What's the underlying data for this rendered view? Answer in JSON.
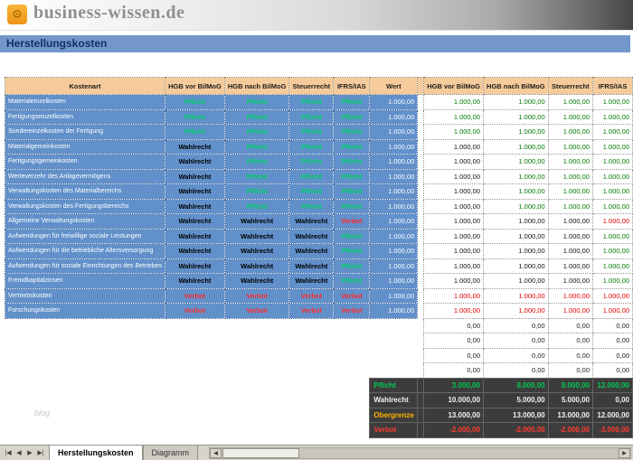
{
  "brand": {
    "logo_text": "business-wissen.de",
    "logo_icon_glyph": "⚙"
  },
  "title": "Herstellungskosten",
  "watermark": "blog",
  "colors": {
    "title_bar": "#7396cb",
    "header_bg": "#f6cb9b",
    "grid_bg": "#6190ca",
    "pflicht": "#008000",
    "wahlrecht": "#000000",
    "verbot": "#ff0000",
    "summary_bg": "#3c3c3c",
    "logo_orange": "#f2a33c"
  },
  "table": {
    "headers": {
      "kostenart": "Kostenart",
      "status_cols": [
        "HGB vor BilMoG",
        "HGB nach BilMoG",
        "Steuerrecht",
        "IFRS/IAS"
      ],
      "wert": "Wert",
      "value_cols": [
        "HGB vor BilMoG",
        "HGB nach BilMoG",
        "Steuerrecht",
        "IFRS/IAS"
      ]
    },
    "rows": [
      {
        "name": "Materialeinzelkosten",
        "status": [
          "Pflicht",
          "Pflicht",
          "Pflicht",
          "Pflicht"
        ],
        "wert": "1.000,00",
        "values": [
          "1.000,00",
          "1.000,00",
          "1.000,00",
          "1.000,00"
        ]
      },
      {
        "name": "Fertigungseinzelkosten",
        "status": [
          "Pflicht",
          "Pflicht",
          "Pflicht",
          "Pflicht"
        ],
        "wert": "1.000,00",
        "values": [
          "1.000,00",
          "1.000,00",
          "1.000,00",
          "1.000,00"
        ]
      },
      {
        "name": "Sondereinzelkosten der Fertigung",
        "status": [
          "Pflicht",
          "Pflicht",
          "Pflicht",
          "Pflicht"
        ],
        "wert": "1.000,00",
        "values": [
          "1.000,00",
          "1.000,00",
          "1.000,00",
          "1.000,00"
        ]
      },
      {
        "name": "Materialgemeinkosten",
        "status": [
          "Wahlrecht",
          "Pflicht",
          "Pflicht",
          "Pflicht"
        ],
        "wert": "1.000,00",
        "values": [
          "1.000,00",
          "1.000,00",
          "1.000,00",
          "1.000,00"
        ]
      },
      {
        "name": "Fertigungsgemeinkosten",
        "status": [
          "Wahlrecht",
          "Pflicht",
          "Pflicht",
          "Pflicht"
        ],
        "wert": "1.000,00",
        "values": [
          "1.000,00",
          "1.000,00",
          "1.000,00",
          "1.000,00"
        ]
      },
      {
        "name": "Werteverzehr des Anlagevermögens",
        "status": [
          "Wahlrecht",
          "Pflicht",
          "Pflicht",
          "Pflicht"
        ],
        "wert": "1.000,00",
        "values": [
          "1.000,00",
          "1.000,00",
          "1.000,00",
          "1.000,00"
        ]
      },
      {
        "name": "Verwaltungskosten des Materialbereichs",
        "status": [
          "Wahlrecht",
          "Pflicht",
          "Pflicht",
          "Pflicht"
        ],
        "wert": "1.000,00",
        "values": [
          "1.000,00",
          "1.000,00",
          "1.000,00",
          "1.000,00"
        ]
      },
      {
        "name": "Verwaltungskosten des Fertigungsbereichs",
        "status": [
          "Wahlrecht",
          "Pflicht",
          "Pflicht",
          "Pflicht"
        ],
        "wert": "1.000,00",
        "values": [
          "1.000,00",
          "1.000,00",
          "1.000,00",
          "1.000,00"
        ]
      },
      {
        "name": "Allgemeine Verwaltungskosten",
        "status": [
          "Wahlrecht",
          "Wahlrecht",
          "Wahlrecht",
          "Verbot"
        ],
        "wert": "1.000,00",
        "values": [
          "1.000,00",
          "1.000,00",
          "1.000,00",
          "1.000,00"
        ]
      },
      {
        "name": "Aufwendungen für freiwillige soziale Leistungen",
        "status": [
          "Wahlrecht",
          "Wahlrecht",
          "Wahlrecht",
          "Pflicht"
        ],
        "wert": "1.000,00",
        "values": [
          "1.000,00",
          "1.000,00",
          "1.000,00",
          "1.000,00"
        ]
      },
      {
        "name": "Aufwendungen für die betriebliche Altersversorgung",
        "status": [
          "Wahlrecht",
          "Wahlrecht",
          "Wahlrecht",
          "Pflicht"
        ],
        "wert": "1.000,00",
        "values": [
          "1.000,00",
          "1.000,00",
          "1.000,00",
          "1.000,00"
        ]
      },
      {
        "name": "Aufwendungen für soziale Einrichtungen des Betriebes",
        "status": [
          "Wahlrecht",
          "Wahlrecht",
          "Wahlrecht",
          "Pflicht"
        ],
        "wert": "1.000,00",
        "values": [
          "1.000,00",
          "1.000,00",
          "1.000,00",
          "1.000,00"
        ]
      },
      {
        "name": "Fremdkapitalzinsen",
        "status": [
          "Wahlrecht",
          "Wahlrecht",
          "Wahlrecht",
          "Pflicht"
        ],
        "wert": "1.000,00",
        "values": [
          "1.000,00",
          "1.000,00",
          "1.000,00",
          "1.000,00"
        ]
      },
      {
        "name": "Vertriebskosten",
        "status": [
          "Verbot",
          "Verbot",
          "Verbot",
          "Verbot"
        ],
        "wert": "1.000,00",
        "values": [
          "1.000,00",
          "1.000,00",
          "1.000,00",
          "1.000,00"
        ]
      },
      {
        "name": "Forschungskosten",
        "status": [
          "Verbot",
          "Verbot",
          "Verbot",
          "Verbot"
        ],
        "wert": "1.000,00",
        "values": [
          "1.000,00",
          "1.000,00",
          "1.000,00",
          "1.000,00"
        ]
      }
    ],
    "empty_rows": [
      [
        "0,00",
        "0,00",
        "0,00",
        "0,00"
      ],
      [
        "0,00",
        "0,00",
        "0,00",
        "0,00"
      ],
      [
        "0,00",
        "0,00",
        "0,00",
        "0,00"
      ],
      [
        "0,00",
        "0,00",
        "0,00",
        "0,00"
      ]
    ]
  },
  "summary": {
    "rows": [
      {
        "label": "Pflicht",
        "label_color": "green",
        "value_color": "green",
        "values": [
          "3.000,00",
          "8.000,00",
          "8.000,00",
          "12.000,00"
        ]
      },
      {
        "label": "Wahlrecht",
        "label_color": "white",
        "value_color": "white",
        "values": [
          "10.000,00",
          "5.000,00",
          "5.000,00",
          "0,00"
        ]
      },
      {
        "label": "Obergrenze",
        "label_color": "orange",
        "value_color": "white",
        "values": [
          "13.000,00",
          "13.000,00",
          "13.000,00",
          "12.000,00"
        ]
      },
      {
        "label": "Verbot",
        "label_color": "red",
        "value_color": "red",
        "values": [
          "-2.000,00",
          "-2.000,00",
          "-2.000,00",
          "-3.000,00"
        ]
      }
    ]
  },
  "sheet_tabs": [
    {
      "label": "Herstellungskosten",
      "active": true
    },
    {
      "label": "Diagramm",
      "active": false
    }
  ],
  "tab_nav": [
    "|◀",
    "◀",
    "▶",
    "▶|"
  ],
  "scrollbar": {
    "left": "◀",
    "right": "▶"
  }
}
